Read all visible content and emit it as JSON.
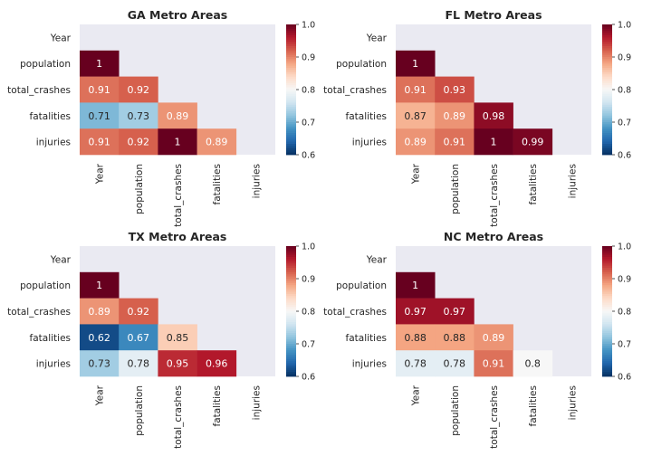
{
  "chart_data": [
    {
      "type": "heatmap",
      "title": "GA Metro Areas",
      "labels": [
        "Year",
        "population",
        "total_crashes",
        "fatalities",
        "injuries"
      ],
      "mask": "upper-triangle-and-diagonal",
      "annot": true,
      "colormap": "RdBu_r",
      "vmin": 0.6,
      "vmax": 1.0,
      "colorbar_ticks": [
        "0.6",
        "0.7",
        "0.8",
        "0.9",
        "1.0"
      ],
      "values": [
        [
          null,
          null,
          null,
          null,
          null
        ],
        [
          1,
          null,
          null,
          null,
          null
        ],
        [
          0.91,
          0.92,
          null,
          null,
          null
        ],
        [
          0.71,
          0.73,
          0.89,
          null,
          null
        ],
        [
          0.91,
          0.92,
          1,
          0.89,
          null
        ]
      ]
    },
    {
      "type": "heatmap",
      "title": "FL Metro Areas",
      "labels": [
        "Year",
        "population",
        "total_crashes",
        "fatalities",
        "injuries"
      ],
      "mask": "upper-triangle-and-diagonal",
      "annot": true,
      "colormap": "RdBu_r",
      "vmin": 0.6,
      "vmax": 1.0,
      "colorbar_ticks": [
        "0.6",
        "0.7",
        "0.8",
        "0.9",
        "1.0"
      ],
      "values": [
        [
          null,
          null,
          null,
          null,
          null
        ],
        [
          1,
          null,
          null,
          null,
          null
        ],
        [
          0.91,
          0.93,
          null,
          null,
          null
        ],
        [
          0.87,
          0.89,
          0.98,
          null,
          null
        ],
        [
          0.89,
          0.91,
          1,
          0.99,
          null
        ]
      ]
    },
    {
      "type": "heatmap",
      "title": "TX Metro Areas",
      "labels": [
        "Year",
        "population",
        "total_crashes",
        "fatalities",
        "injuries"
      ],
      "mask": "upper-triangle-and-diagonal",
      "annot": true,
      "colormap": "RdBu_r",
      "vmin": 0.6,
      "vmax": 1.0,
      "colorbar_ticks": [
        "0.6",
        "0.7",
        "0.8",
        "0.9",
        "1.0"
      ],
      "values": [
        [
          null,
          null,
          null,
          null,
          null
        ],
        [
          1,
          null,
          null,
          null,
          null
        ],
        [
          0.89,
          0.92,
          null,
          null,
          null
        ],
        [
          0.62,
          0.67,
          0.85,
          null,
          null
        ],
        [
          0.73,
          0.78,
          0.95,
          0.96,
          null
        ]
      ]
    },
    {
      "type": "heatmap",
      "title": "NC Metro Areas",
      "labels": [
        "Year",
        "population",
        "total_crashes",
        "fatalities",
        "injuries"
      ],
      "mask": "upper-triangle-and-diagonal",
      "annot": true,
      "colormap": "RdBu_r",
      "vmin": 0.6,
      "vmax": 1.0,
      "colorbar_ticks": [
        "0.6",
        "0.7",
        "0.8",
        "0.9",
        "1.0"
      ],
      "values": [
        [
          null,
          null,
          null,
          null,
          null
        ],
        [
          1,
          null,
          null,
          null,
          null
        ],
        [
          0.97,
          0.97,
          null,
          null,
          null
        ],
        [
          0.88,
          0.88,
          0.89,
          null,
          null
        ],
        [
          0.78,
          0.78,
          0.91,
          0.8,
          null
        ]
      ]
    }
  ],
  "colors": {
    "axes_background": "#eaeaf2",
    "text": "#262626",
    "colormap_stops": [
      "#053061",
      "#2166ac",
      "#4393c3",
      "#92c5de",
      "#d1e5f0",
      "#f7f7f7",
      "#fddbc7",
      "#f4a582",
      "#d6604d",
      "#b2182b",
      "#67001f"
    ]
  }
}
